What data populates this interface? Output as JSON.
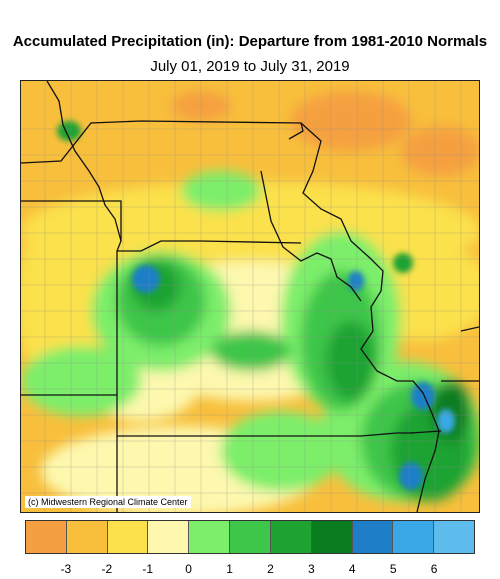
{
  "title": "Accumulated Precipitation (in): Departure from 1981-2010 Normals",
  "subtitle": "July 01, 2019 to July 31, 2019",
  "credit": "(c) Midwestern Regional Climate Center",
  "legend": {
    "colors": [
      "#f5a040",
      "#f8bf3c",
      "#fbe14b",
      "#fdf8ae",
      "#7bee6a",
      "#3ec64a",
      "#1ea330",
      "#0a7d20",
      "#1e7fc8",
      "#3aa8e6",
      "#5dbcec"
    ],
    "labels": [
      "-3",
      "-2",
      "-1",
      "0",
      "1",
      "2",
      "3",
      "4",
      "5",
      "6"
    ]
  }
}
